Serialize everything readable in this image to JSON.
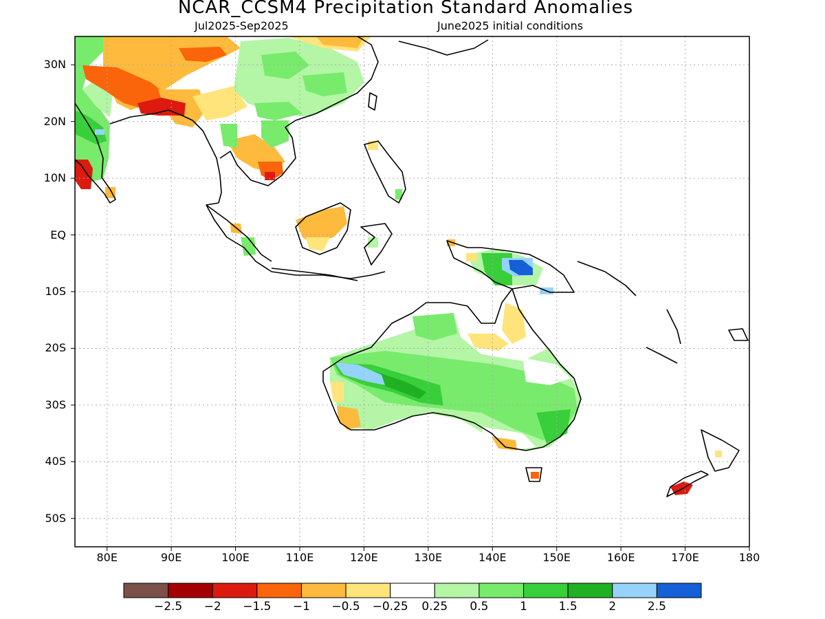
{
  "title": "NCAR_CCSM4 Precipitation Standard Anomalies",
  "period": "Jul2025-Sep2025",
  "init": "June2025 initial conditions",
  "map": {
    "lon_range": [
      75,
      180
    ],
    "lat_range": [
      -55,
      35
    ],
    "lat_ticks": [
      {
        "value": 30,
        "label": "30N"
      },
      {
        "value": 20,
        "label": "20N"
      },
      {
        "value": 10,
        "label": "10N"
      },
      {
        "value": 0,
        "label": "EQ"
      },
      {
        "value": -10,
        "label": "10S"
      },
      {
        "value": -20,
        "label": "20S"
      },
      {
        "value": -30,
        "label": "30S"
      },
      {
        "value": -40,
        "label": "40S"
      },
      {
        "value": -50,
        "label": "50S"
      }
    ],
    "lon_ticks": [
      {
        "value": 80,
        "label": "80E"
      },
      {
        "value": 90,
        "label": "90E"
      },
      {
        "value": 100,
        "label": "100E"
      },
      {
        "value": 110,
        "label": "110E"
      },
      {
        "value": 120,
        "label": "120E"
      },
      {
        "value": 130,
        "label": "130E"
      },
      {
        "value": 140,
        "label": "140E"
      },
      {
        "value": 150,
        "label": "150E"
      },
      {
        "value": 160,
        "label": "160E"
      },
      {
        "value": 170,
        "label": "170E"
      },
      {
        "value": 180,
        "label": "180"
      }
    ],
    "grid": "dotted",
    "colors": {
      "dry_extreme": "#7a5048",
      "dry_strong": "#a50000",
      "dry_2": "#dc1a0f",
      "dry_15": "#fa640a",
      "dry_1": "#fdba3c",
      "dry_05": "#fee47a",
      "neutral": "#ffffff",
      "wet_025": "#b4f5a6",
      "wet_05": "#78eb6c",
      "wet_1": "#38cf3a",
      "wet_15": "#20b024",
      "wet_2": "#96d3fa",
      "wet_25": "#1560d6"
    }
  },
  "colorbar": {
    "colors": [
      "#7a5048",
      "#a50000",
      "#dc1a0f",
      "#fa640a",
      "#fdba3c",
      "#fee47a",
      "#ffffff",
      "#b4f5a6",
      "#78eb6c",
      "#38cf3a",
      "#20b024",
      "#96d3fa",
      "#1560d6"
    ],
    "labels": [
      "−2.5",
      "−2",
      "−1.5",
      "−1",
      "−0.5",
      "−0.25",
      "0.25",
      "0.5",
      "1",
      "1.5",
      "2",
      "2.5"
    ]
  }
}
